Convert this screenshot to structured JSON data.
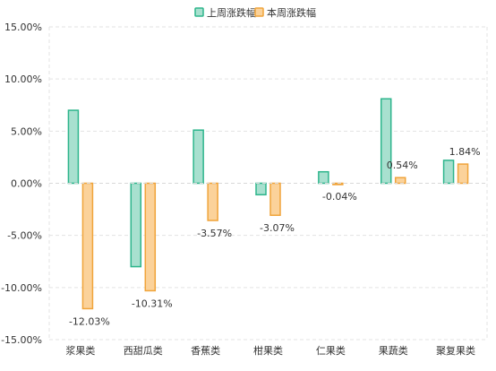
{
  "chart_data": {
    "type": "bar",
    "categories": [
      "浆果类",
      "西甜瓜类",
      "香蕉类",
      "柑果类",
      "仁果类",
      "果蔬类",
      "聚复果类"
    ],
    "series": [
      {
        "name": "上周涨跌幅",
        "values": [
          7.0,
          -8.0,
          5.1,
          -1.1,
          1.1,
          8.1,
          2.2
        ],
        "fill": "#a8e0cf",
        "stroke": "#2db58c",
        "labels": [
          "",
          "",
          "",
          "",
          "",
          "",
          ""
        ]
      },
      {
        "name": "本周涨跌幅",
        "values": [
          -12.03,
          -10.31,
          -3.57,
          -3.07,
          -0.04,
          0.54,
          1.84
        ],
        "fill": "#fbd29a",
        "stroke": "#f0a43a",
        "labels": [
          "-12.03%",
          "-10.31%",
          "-3.57%",
          "-3.07%",
          "-0.04%",
          "0.54%",
          "1.84%"
        ]
      }
    ],
    "yticks": [
      "15.00%",
      "10.00%",
      "5.00%",
      "0.00%",
      "-5.00%",
      "-10.00%",
      "-15.00%"
    ],
    "ylim": [
      -15,
      15
    ],
    "grid": true,
    "legend_position": "top-center"
  }
}
